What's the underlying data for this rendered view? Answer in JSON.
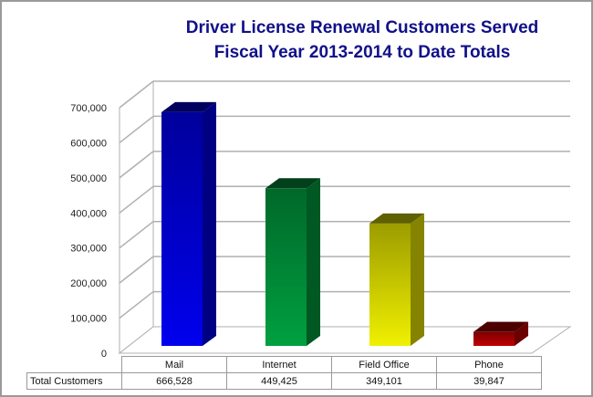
{
  "chart_data": {
    "type": "bar",
    "title": "Driver License Renewal Customers Served",
    "subtitle": "Fiscal Year 2013-2014 to Date Totals",
    "categories": [
      "Mail",
      "Internet",
      "Field Office",
      "Phone"
    ],
    "values": [
      666528,
      449425,
      349101,
      39847
    ],
    "value_labels": [
      "666,528",
      "449,425",
      "349,101",
      "39,847"
    ],
    "series_name": "Total Customers",
    "colors": [
      "#0000ee",
      "#00a040",
      "#f0f000",
      "#c00000"
    ],
    "yticks": [
      "0",
      "100,000",
      "200,000",
      "300,000",
      "400,000",
      "500,000",
      "600,000",
      "700,000"
    ],
    "ylim": [
      0,
      700000
    ],
    "xlabel": "",
    "ylabel": "",
    "grid": true,
    "style": "3d-column with data table"
  }
}
